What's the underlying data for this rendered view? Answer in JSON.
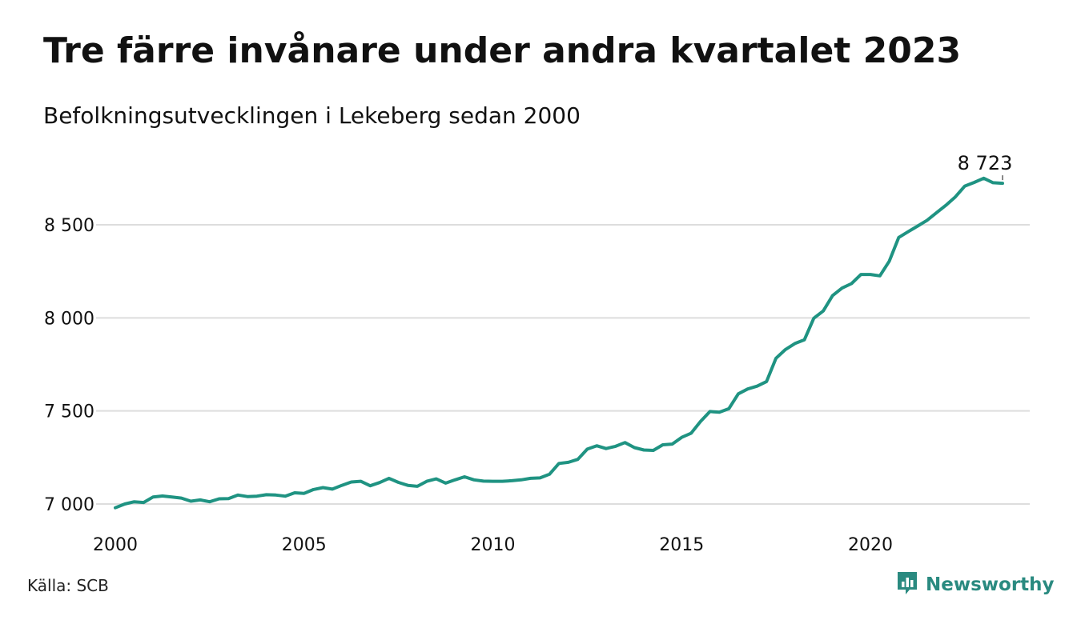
{
  "header": {
    "title": "Tre färre invånare under andra kvartalet 2023",
    "subtitle": "Befolkningsutvecklingen i Lekeberg sedan 2000"
  },
  "footer": {
    "source": "Källa: SCB",
    "brand": "Newsworthy",
    "brand_icon": "bar-chart-speech-bubble-icon"
  },
  "colors": {
    "line": "#1f9382",
    "grid": "#dddddd",
    "brand": "#2a8a80"
  },
  "chart_data": {
    "type": "line",
    "title": "Tre färre invånare under andra kvartalet 2023",
    "subtitle": "Befolkningsutvecklingen i Lekeberg sedan 2000",
    "xlabel": "",
    "ylabel": "",
    "xlim": [
      2000,
      2023.5
    ],
    "ylim": [
      6990,
      8780
    ],
    "x_ticks": [
      2000,
      2005,
      2010,
      2015,
      2020
    ],
    "x_tick_labels": [
      "2000",
      "2005",
      "2010",
      "2015",
      "2020"
    ],
    "y_ticks": [
      7000,
      7500,
      8000,
      8500
    ],
    "y_tick_labels": [
      "7 000",
      "7 500",
      "8 000",
      "8 500"
    ],
    "grid": "horizontal",
    "legend": "none",
    "last_value_label": "8 723",
    "series": [
      {
        "x": [
          2000.0,
          2000.25,
          2000.5,
          2000.75,
          2001.0,
          2001.25,
          2001.5,
          2001.75,
          2002.0,
          2002.25,
          2002.5,
          2002.75,
          2003.0,
          2003.25,
          2003.5,
          2003.75,
          2004.0,
          2004.25,
          2004.5,
          2004.75,
          2005.0,
          2005.25,
          2005.5,
          2005.75,
          2006.0,
          2006.25,
          2006.5,
          2006.75,
          2007.0,
          2007.25,
          2007.5,
          2007.75,
          2008.0,
          2008.25,
          2008.5,
          2008.75,
          2009.0,
          2009.25,
          2009.5,
          2009.75,
          2010.0,
          2010.25,
          2010.5,
          2010.75,
          2011.0,
          2011.25,
          2011.5,
          2011.75,
          2012.0,
          2012.25,
          2012.5,
          2012.75,
          2013.0,
          2013.25,
          2013.5,
          2013.75,
          2014.0,
          2014.25,
          2014.5,
          2014.75,
          2015.0,
          2015.25,
          2015.5,
          2015.75,
          2016.0,
          2016.25,
          2016.5,
          2016.75,
          2017.0,
          2017.25,
          2017.5,
          2017.75,
          2018.0,
          2018.25,
          2018.5,
          2018.75,
          2019.0,
          2019.25,
          2019.5,
          2019.75,
          2020.0,
          2020.25,
          2020.5,
          2020.75,
          2021.0,
          2021.25,
          2021.5,
          2021.75,
          2022.0,
          2022.25,
          2022.5,
          2022.75,
          2023.0,
          2023.25,
          2023.5
        ],
        "values": [
          6980,
          7000,
          7012,
          7008,
          7038,
          7043,
          7038,
          7032,
          7015,
          7022,
          7012,
          7028,
          7029,
          7048,
          7040,
          7042,
          7050,
          7048,
          7042,
          7060,
          7057,
          7078,
          7088,
          7080,
          7100,
          7118,
          7122,
          7098,
          7115,
          7138,
          7116,
          7100,
          7095,
          7122,
          7135,
          7112,
          7130,
          7146,
          7130,
          7123,
          7122,
          7122,
          7125,
          7130,
          7138,
          7140,
          7160,
          7218,
          7224,
          7240,
          7295,
          7313,
          7298,
          7310,
          7330,
          7303,
          7290,
          7288,
          7318,
          7322,
          7358,
          7380,
          7443,
          7497,
          7493,
          7512,
          7592,
          7618,
          7633,
          7658,
          7783,
          7830,
          7862,
          7882,
          7998,
          8037,
          8120,
          8160,
          8184,
          8233,
          8233,
          8226,
          8305,
          8432,
          8463,
          8493,
          8524,
          8565,
          8605,
          8650,
          8708,
          8728,
          8750,
          8726,
          8723
        ]
      }
    ]
  }
}
